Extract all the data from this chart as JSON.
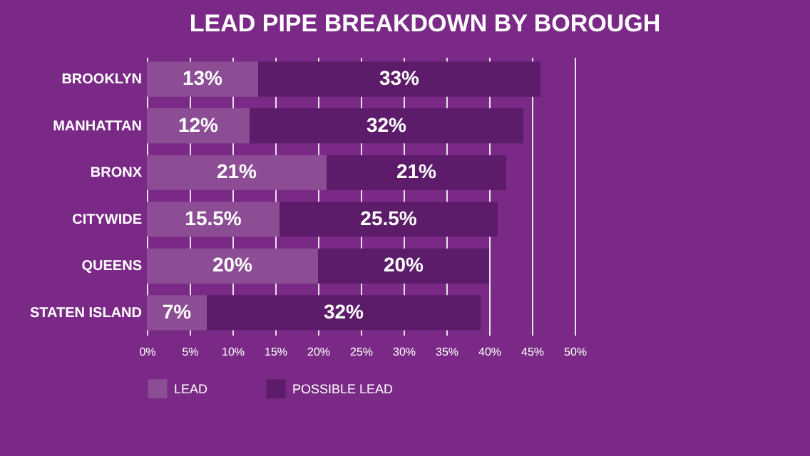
{
  "chart_data": {
    "type": "bar",
    "orientation": "horizontal",
    "stacked": true,
    "title": "LEAD PIPE BREAKDOWN BY BOROUGH",
    "categories": [
      "BROOKLYN",
      "MANHATTAN",
      "BRONX",
      "CITYWIDE",
      "QUEENS",
      "STATEN ISLAND"
    ],
    "series": [
      {
        "name": "LEAD",
        "color": "#8c4d95",
        "values": [
          13,
          12,
          21,
          15.5,
          20,
          7
        ],
        "value_labels": [
          "13%",
          "12%",
          "21%",
          "15.5%",
          "20%",
          "7%"
        ]
      },
      {
        "name": "POSSIBLE LEAD",
        "color": "#5c1c69",
        "values": [
          33,
          32,
          21,
          25.5,
          20,
          32
        ],
        "value_labels": [
          "33%",
          "32%",
          "21%",
          "25.5%",
          "20%",
          "32%"
        ]
      }
    ],
    "xlim": [
      0,
      50
    ],
    "xticks": [
      {
        "value": 0,
        "label": "0%"
      },
      {
        "value": 5,
        "label": "5%"
      },
      {
        "value": 10,
        "label": "10%"
      },
      {
        "value": 15,
        "label": "15%"
      },
      {
        "value": 20,
        "label": "20%"
      },
      {
        "value": 25,
        "label": "25%"
      },
      {
        "value": 30,
        "label": "30%"
      },
      {
        "value": 35,
        "label": "35%"
      },
      {
        "value": 40,
        "label": "40%"
      },
      {
        "value": 45,
        "label": "45%"
      },
      {
        "value": 50,
        "label": "50%"
      }
    ],
    "grid": "x",
    "legend": "bottom"
  }
}
